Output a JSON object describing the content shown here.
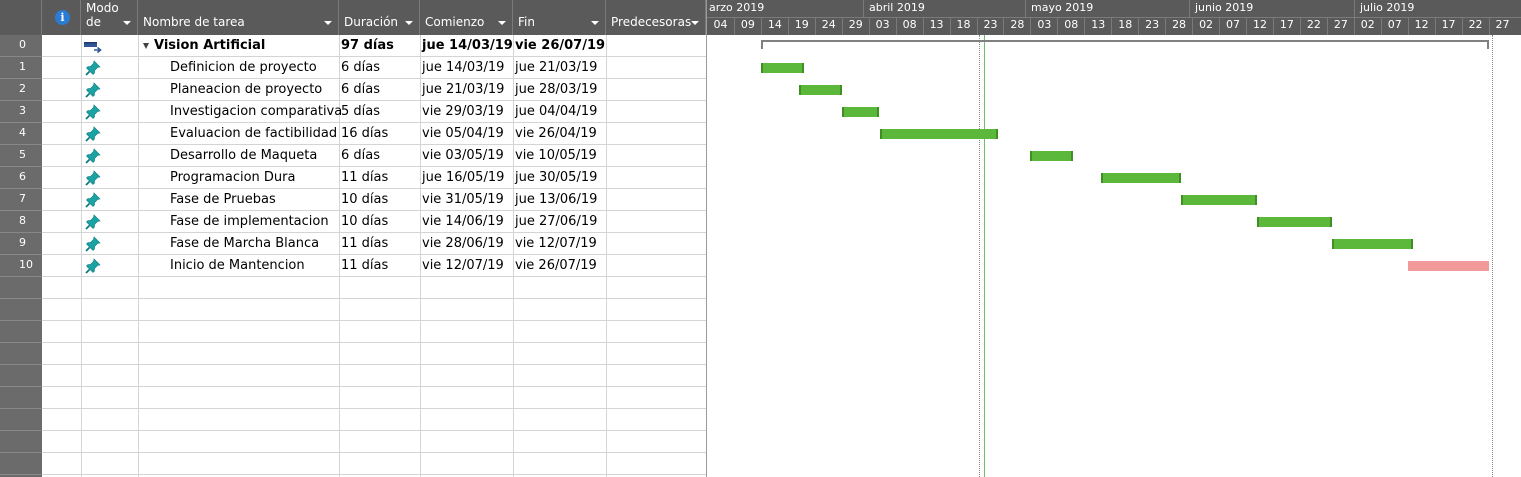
{
  "app": "Microsoft Project - Gantt view",
  "columns": {
    "info_icon": "info-icon",
    "modo_line1": "Modo",
    "modo_line2": "de",
    "name": "Nombre de tarea",
    "duration": "Duración",
    "start": "Comienzo",
    "finish": "Fin",
    "predecessors": "Predecesoras"
  },
  "timescale": {
    "months": [
      "arzo 2019",
      "abril 2019",
      "mayo 2019",
      "junio 2019",
      "julio 2019"
    ],
    "ticks": [
      "04",
      "09",
      "14",
      "19",
      "24",
      "29",
      "03",
      "08",
      "13",
      "18",
      "23",
      "28",
      "03",
      "08",
      "13",
      "18",
      "23",
      "28",
      "02",
      "07",
      "12",
      "17",
      "22",
      "27",
      "02",
      "07",
      "12",
      "17",
      "22",
      "27"
    ]
  },
  "tasks": [
    {
      "id": "0",
      "mode_icon": "summary-task-icon",
      "name": "Vision Artificial",
      "duration": "97 días",
      "start": "jue 14/03/19",
      "finish": "vie 26/07/19",
      "predecessors": "",
      "summary": true,
      "critical": false
    },
    {
      "id": "1",
      "mode_icon": "pin-icon",
      "name": "Definicion de proyecto",
      "duration": "6 días",
      "start": "jue 14/03/19",
      "finish": "jue 21/03/19",
      "predecessors": "",
      "summary": false,
      "critical": false
    },
    {
      "id": "2",
      "mode_icon": "pin-icon",
      "name": "Planeacion de proyecto",
      "duration": "6 días",
      "start": "jue 21/03/19",
      "finish": "jue 28/03/19",
      "predecessors": "",
      "summary": false,
      "critical": false
    },
    {
      "id": "3",
      "mode_icon": "pin-icon",
      "name": "Investigacion comparativa",
      "duration": "5 días",
      "start": "vie 29/03/19",
      "finish": "jue 04/04/19",
      "predecessors": "",
      "summary": false,
      "critical": false
    },
    {
      "id": "4",
      "mode_icon": "pin-icon",
      "name": "Evaluacion de factibilidad",
      "duration": "16 días",
      "start": "vie 05/04/19",
      "finish": "vie 26/04/19",
      "predecessors": "",
      "summary": false,
      "critical": false
    },
    {
      "id": "5",
      "mode_icon": "pin-icon",
      "name": "Desarrollo de Maqueta",
      "duration": "6 días",
      "start": "vie 03/05/19",
      "finish": "vie 10/05/19",
      "predecessors": "",
      "summary": false,
      "critical": false
    },
    {
      "id": "6",
      "mode_icon": "pin-icon",
      "name": "Programacion Dura",
      "duration": "11 días",
      "start": "jue 16/05/19",
      "finish": "jue 30/05/19",
      "predecessors": "",
      "summary": false,
      "critical": false
    },
    {
      "id": "7",
      "mode_icon": "pin-icon",
      "name": "Fase de Pruebas",
      "duration": "10 días",
      "start": "vie 31/05/19",
      "finish": "jue 13/06/19",
      "predecessors": "",
      "summary": false,
      "critical": false
    },
    {
      "id": "8",
      "mode_icon": "pin-icon",
      "name": "Fase de implementacion",
      "duration": "10 días",
      "start": "vie 14/06/19",
      "finish": "jue 27/06/19",
      "predecessors": "",
      "summary": false,
      "critical": false
    },
    {
      "id": "9",
      "mode_icon": "pin-icon",
      "name": "Fase de Marcha Blanca",
      "duration": "11 días",
      "start": "vie 28/06/19",
      "finish": "vie 12/07/19",
      "predecessors": "",
      "summary": false,
      "critical": false
    },
    {
      "id": "10",
      "mode_icon": "pin-icon",
      "name": "Inicio de Mantencion",
      "duration": "11 días",
      "start": "vie 12/07/19",
      "finish": "vie 26/07/19",
      "predecessors": "",
      "summary": false,
      "critical": true
    }
  ],
  "colors": {
    "header_bg": "#5a5a5a",
    "task_bar": "#5bb83a",
    "critical_bar": "#f29a9a",
    "summary_bar": "#808080",
    "pin_icon": "#1aa3a3",
    "status_line": "#6fbf6f"
  }
}
